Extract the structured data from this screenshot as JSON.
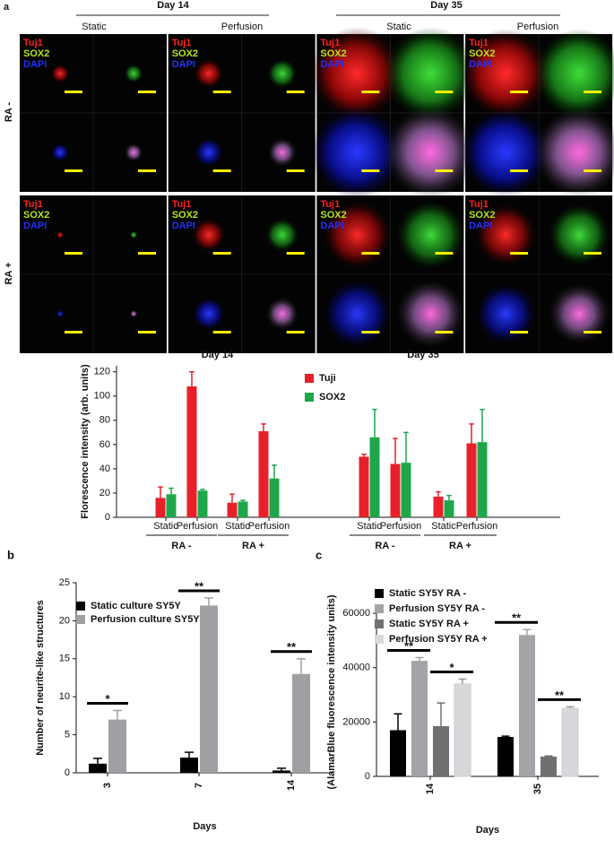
{
  "panels": [
    "a",
    "b",
    "c"
  ],
  "micrograph": {
    "day_headers": [
      "Day 14",
      "Day 35"
    ],
    "conditions": [
      "Static",
      "Perfusion",
      "Static",
      "Perfusion"
    ],
    "rows": [
      "RA -",
      "RA +"
    ],
    "channels": [
      "Tuj1",
      "SOX2",
      "DAPI"
    ]
  },
  "chart_data": [
    {
      "type": "bar",
      "y_label": "Florescence intensity (arb. units)",
      "day_titles": [
        "Day 14",
        "Day 35"
      ],
      "group_labels": [
        "RA -",
        "RA +",
        "RA -",
        "RA +"
      ],
      "categories": [
        "Static",
        "Perfusion",
        "Static",
        "Perfusion",
        "Static",
        "Perfusion",
        "Static",
        "Perfusion"
      ],
      "series": [
        {
          "name": "Tuji",
          "color": "#e8202a",
          "values": [
            16,
            108,
            12,
            71,
            50,
            44,
            17,
            61
          ],
          "errors": [
            9,
            12,
            7,
            6,
            2,
            21,
            4,
            16
          ]
        },
        {
          "name": "SOX2",
          "color": "#1fa64a",
          "values": [
            19,
            22,
            13,
            32,
            66,
            45,
            14,
            62
          ],
          "errors": [
            5,
            1,
            1,
            11,
            23,
            25,
            4,
            27
          ]
        }
      ],
      "ylim": [
        0,
        125
      ],
      "yticks": [
        0,
        20,
        40,
        60,
        80,
        100,
        120
      ]
    },
    {
      "type": "bar",
      "y_label": "Number of neurite-like structures",
      "x_label": "Days",
      "categories": [
        "3",
        "7",
        "14"
      ],
      "series": [
        {
          "name": "Static culture SY5Y",
          "color": "#000000",
          "values": [
            1.2,
            2,
            0.3
          ],
          "errors": [
            0.7,
            0.7,
            0.3
          ]
        },
        {
          "name": "Perfusion culture SY5Y",
          "color": "#a0a0a4",
          "values": [
            7,
            22,
            13
          ],
          "errors": [
            1.2,
            1,
            2
          ]
        }
      ],
      "significance": [
        "*",
        "**",
        "**"
      ],
      "ylim": [
        0,
        25
      ],
      "yticks": [
        0,
        5,
        10,
        15,
        20,
        25
      ]
    },
    {
      "type": "bar",
      "y_label": "(AlamarBlue fluorescence intensity units)",
      "x_label": "Days",
      "categories": [
        "14",
        "35"
      ],
      "series": [
        {
          "name": "Static SY5Y RA -",
          "color": "#000000",
          "values": [
            17000,
            14500
          ],
          "errors": [
            6000,
            300
          ]
        },
        {
          "name": "Perfusion SY5Y RA -",
          "color": "#a3a3a8",
          "values": [
            42500,
            52000
          ],
          "errors": [
            1200,
            2000
          ]
        },
        {
          "name": "Static SY5Y RA +",
          "color": "#707073",
          "values": [
            18500,
            7300
          ],
          "errors": [
            8500,
            200
          ]
        },
        {
          "name": "Perfusion SY5Y RA +",
          "color": "#d8d8dc",
          "values": [
            34000,
            25000
          ],
          "errors": [
            1800,
            600
          ]
        }
      ],
      "significance": [
        "**",
        "*",
        "**",
        "**"
      ],
      "ylim": [
        0,
        62000
      ],
      "yticks": [
        0,
        20000,
        40000,
        60000
      ]
    }
  ]
}
